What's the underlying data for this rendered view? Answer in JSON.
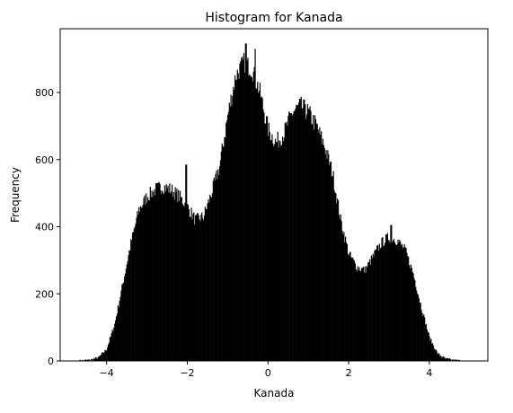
{
  "chart_data": {
    "type": "bar",
    "title": "Histogram for Kanada",
    "xlabel": "Kanada",
    "ylabel": "Frequency",
    "xlim": [
      -5.15,
      5.45
    ],
    "ylim": [
      0,
      990
    ],
    "x_ticks": [
      -4,
      -2,
      0,
      2,
      4
    ],
    "x_tick_labels": [
      "−4",
      "−2",
      "0",
      "2",
      "4"
    ],
    "y_ticks": [
      0,
      200,
      400,
      600,
      800
    ],
    "y_tick_labels": [
      "0",
      "200",
      "400",
      "600",
      "800"
    ],
    "bar_color": "#000000",
    "envelope": {
      "x": [
        -4.7,
        -4.4,
        -4.2,
        -4.0,
        -3.8,
        -3.6,
        -3.4,
        -3.2,
        -3.0,
        -2.8,
        -2.6,
        -2.4,
        -2.2,
        -2.0,
        -1.8,
        -1.6,
        -1.4,
        -1.2,
        -1.0,
        -0.8,
        -0.6,
        -0.4,
        -0.2,
        0.0,
        0.2,
        0.4,
        0.6,
        0.8,
        1.0,
        1.2,
        1.4,
        1.6,
        1.8,
        2.0,
        2.2,
        2.4,
        2.6,
        2.8,
        3.0,
        3.2,
        3.4,
        3.6,
        3.8,
        4.0,
        4.2,
        4.4,
        4.6,
        4.8,
        5.0
      ],
      "y": [
        0,
        3,
        10,
        35,
        110,
        230,
        350,
        450,
        490,
        510,
        520,
        510,
        490,
        460,
        420,
        430,
        500,
        580,
        730,
        850,
        890,
        870,
        800,
        690,
        650,
        680,
        740,
        760,
        740,
        700,
        640,
        560,
        420,
        320,
        280,
        270,
        310,
        350,
        370,
        360,
        330,
        260,
        160,
        70,
        22,
        6,
        2,
        0,
        0
      ]
    },
    "spikes": [
      {
        "x": -2.03,
        "y": 585
      },
      {
        "x": -0.55,
        "y": 946
      },
      {
        "x": -0.32,
        "y": 930
      },
      {
        "x": 0.92,
        "y": 765
      },
      {
        "x": 3.05,
        "y": 405
      }
    ]
  }
}
